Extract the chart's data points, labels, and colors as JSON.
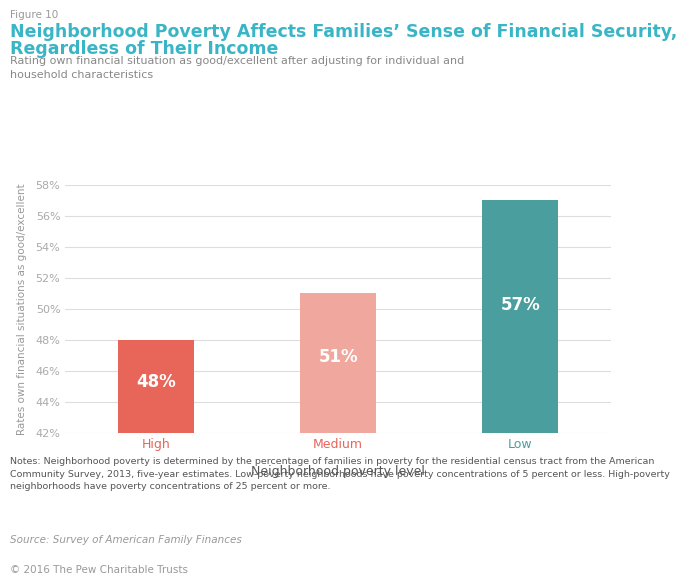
{
  "figure_label": "Figure 10",
  "title_line1": "Neighborhood Poverty Affects Families’ Sense of Financial Security,",
  "title_line2": "Regardless of Their Income",
  "subtitle": "Rating own financial situation as good/excellent after adjusting for individual and\nhousehold characteristics",
  "categories": [
    "High",
    "Medium",
    "Low"
  ],
  "values": [
    48,
    51,
    57
  ],
  "bar_colors": [
    "#e8655a",
    "#f0a89e",
    "#4a9e9e"
  ],
  "xticklabel_colors": [
    "#e8655a",
    "#e8655a",
    "#4a9e9e"
  ],
  "label_color": "#ffffff",
  "xlabel": "Neighborhood poverty level",
  "ylabel": "Rates own financial situations as good/excellent",
  "ylim_min": 42,
  "ylim_max": 58,
  "yticks": [
    42,
    44,
    46,
    48,
    50,
    52,
    54,
    56,
    58
  ],
  "tick_color": "#aaaaaa",
  "grid_color": "#dddddd",
  "figure_label_color": "#999999",
  "title_color": "#3ab5c6",
  "subtitle_color": "#888888",
  "xlabel_color": "#555555",
  "ylabel_color": "#999999",
  "notes_text": "Notes: Neighborhood poverty is determined by the percentage of families in poverty for the residential census tract from the American\nCommunity Survey, 2013, five-year estimates. Low-poverty neighborhoods have poverty concentrations of 5 percent or less. High-poverty\nneighborhoods have poverty concentrations of 25 percent or more.",
  "source_text": "Source: Survey of American Family Finances",
  "copyright_text": "© 2016 The Pew Charitable Trusts",
  "notes_color": "#555555",
  "source_color": "#999999",
  "bg_color": "#ffffff"
}
